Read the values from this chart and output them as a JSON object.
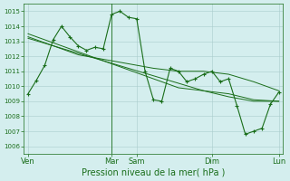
{
  "title": "",
  "xlabel": "Pression niveau de la mer( hPa )",
  "bg_color": "#d4eeee",
  "grid_color": "#aacccc",
  "line_color": "#1a6e1a",
  "ylim_min": 1005.5,
  "ylim_max": 1015.5,
  "yticks": [
    1006,
    1007,
    1008,
    1009,
    1010,
    1011,
    1012,
    1013,
    1014,
    1015
  ],
  "xtick_labels": [
    "Ven",
    "Mar",
    "Sam",
    "Dim",
    "Lun"
  ],
  "xtick_positions": [
    0,
    10,
    13,
    22,
    30
  ],
  "vline_positions": [
    10
  ],
  "series1_x": [
    0,
    1,
    2,
    3,
    4,
    5,
    6,
    7,
    8,
    9,
    10,
    11,
    12,
    13,
    14,
    15,
    16,
    17,
    18,
    19,
    20,
    21,
    22,
    23,
    24,
    25,
    26,
    27,
    28,
    29,
    30
  ],
  "series1_y": [
    1009.5,
    1010.4,
    1011.4,
    1013.1,
    1014.0,
    1013.3,
    1012.7,
    1012.4,
    1012.6,
    1012.5,
    1014.8,
    1015.0,
    1014.6,
    1014.5,
    1011.0,
    1009.1,
    1009.0,
    1011.2,
    1011.0,
    1010.3,
    1010.5,
    1010.8,
    1011.0,
    1010.3,
    1010.5,
    1008.7,
    1006.8,
    1007.0,
    1007.2,
    1008.8,
    1009.6
  ],
  "series2_x": [
    0,
    3,
    6,
    9,
    12,
    15,
    18,
    21,
    24,
    27,
    30
  ],
  "series2_y": [
    1013.2,
    1012.7,
    1012.2,
    1011.7,
    1011.2,
    1010.7,
    1010.2,
    1009.7,
    1009.3,
    1009.0,
    1009.0
  ],
  "series3_x": [
    0,
    3,
    6,
    9,
    12,
    15,
    18,
    21,
    24,
    27,
    30
  ],
  "series3_y": [
    1013.3,
    1012.7,
    1012.1,
    1011.8,
    1011.5,
    1011.2,
    1011.0,
    1011.0,
    1010.8,
    1010.3,
    1009.7
  ],
  "series4_x": [
    0,
    3,
    6,
    9,
    12,
    15,
    18,
    21,
    24,
    27,
    30
  ],
  "series4_y": [
    1013.5,
    1012.9,
    1012.3,
    1011.7,
    1011.1,
    1010.5,
    1009.9,
    1009.7,
    1009.5,
    1009.1,
    1009.0
  ],
  "xlabel_fontsize": 7,
  "ytick_fontsize": 5,
  "xtick_fontsize": 6
}
